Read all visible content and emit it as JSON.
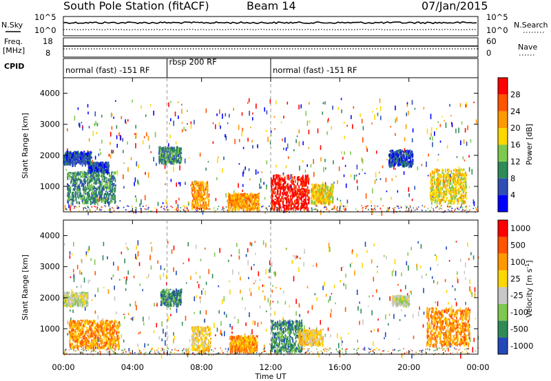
{
  "header": {
    "title_left": "South Pole Station (fitACF)",
    "title_mid": "Beam 14",
    "title_right": "07/Jan/2015"
  },
  "noise_panel": {
    "left_label": "N.Sky",
    "right_label": "N.Search",
    "left_ticks": [
      "10^5",
      "10^0"
    ],
    "right_ticks": [
      "10^5",
      "10^0"
    ]
  },
  "freq_panel": {
    "left_label_1": "Freq.",
    "left_label_2": "[MHz]",
    "left_ticks": [
      "18",
      "8"
    ],
    "right_label": "Nave",
    "right_ticks": [
      "60",
      "0"
    ]
  },
  "cpid": {
    "label": "CPID",
    "segments": [
      {
        "text": "normal (fast) -151 RF",
        "start_h": 0,
        "end_h": 6
      },
      {
        "text": "rbsp 200 RF",
        "start_h": 6,
        "end_h": 12
      },
      {
        "text": "normal (fast) -151 RF",
        "start_h": 12,
        "end_h": 24
      }
    ]
  },
  "x_axis": {
    "label": "Time UT",
    "ticks": [
      "00:00",
      "04:00",
      "08:00",
      "12:00",
      "16:00",
      "20:00",
      "00:00"
    ]
  },
  "chart_data": [
    {
      "type": "heatmap",
      "ylabel": "Slant Range [km]",
      "yticks": [
        1000,
        2000,
        3000,
        4000
      ],
      "ylim": [
        180,
        4500
      ],
      "xlim_hours": [
        0,
        24
      ],
      "colorbar_label": "Power [dB]",
      "colorbar_ticks": [
        "4",
        "8",
        "12",
        "16",
        "20",
        "24",
        "28"
      ],
      "colors": [
        "#0000ff",
        "#2e4fb4",
        "#2e8b57",
        "#7ec850",
        "#ffd700",
        "#ff9900",
        "#ff5500",
        "#ff0000"
      ],
      "regions": [
        {
          "t0": 0.0,
          "t1": 1.6,
          "r0": 1750,
          "r1": 2150,
          "level": 1
        },
        {
          "t0": 0.2,
          "t1": 3.0,
          "r0": 500,
          "r1": 1500,
          "level": 2
        },
        {
          "t0": 1.4,
          "t1": 2.6,
          "r0": 1500,
          "r1": 1800,
          "level": 1
        },
        {
          "t0": 5.5,
          "t1": 6.8,
          "r0": 1800,
          "r1": 2300,
          "level": 2
        },
        {
          "t0": 7.4,
          "t1": 8.4,
          "r0": 300,
          "r1": 1200,
          "level": 5
        },
        {
          "t0": 9.5,
          "t1": 11.3,
          "r0": 300,
          "r1": 800,
          "level": 5
        },
        {
          "t0": 12.0,
          "t1": 14.2,
          "r0": 300,
          "r1": 1400,
          "level": 7
        },
        {
          "t0": 14.3,
          "t1": 15.6,
          "r0": 500,
          "r1": 1100,
          "level": 4
        },
        {
          "t0": 18.8,
          "t1": 20.2,
          "r0": 1700,
          "r1": 2200,
          "level": 1
        },
        {
          "t0": 21.2,
          "t1": 23.3,
          "r0": 500,
          "r1": 1600,
          "level": 4
        }
      ]
    },
    {
      "type": "heatmap",
      "ylabel": "Slant Range [km]",
      "yticks": [
        1000,
        2000,
        3000,
        4000
      ],
      "ylim": [
        180,
        4500
      ],
      "xlim_hours": [
        0,
        24
      ],
      "colorbar_label": "Velocity [m s^-1]",
      "colorbar_ticks": [
        "1000",
        "500",
        "100",
        "25",
        "-25",
        "-100",
        "-500",
        "-1000"
      ],
      "colors": [
        "#2448b8",
        "#2e8b57",
        "#7ec850",
        "#c8c8c8",
        "#ffd700",
        "#ff9900",
        "#ff5500",
        "#ff0000"
      ],
      "regions": [
        {
          "t0": 0.0,
          "t1": 1.4,
          "r0": 1800,
          "r1": 2200,
          "level": 3
        },
        {
          "t0": 0.3,
          "t1": 3.2,
          "r0": 400,
          "r1": 1300,
          "level": 5
        },
        {
          "t0": 5.6,
          "t1": 6.8,
          "r0": 1800,
          "r1": 2300,
          "level": 1
        },
        {
          "t0": 7.4,
          "t1": 8.5,
          "r0": 300,
          "r1": 1100,
          "level": 4
        },
        {
          "t0": 9.6,
          "t1": 11.2,
          "r0": 300,
          "r1": 800,
          "level": 5
        },
        {
          "t0": 12.0,
          "t1": 13.8,
          "r0": 300,
          "r1": 1300,
          "level": 1
        },
        {
          "t0": 13.6,
          "t1": 15.0,
          "r0": 500,
          "r1": 1000,
          "level": 4
        },
        {
          "t0": 19.0,
          "t1": 20.0,
          "r0": 1800,
          "r1": 2100,
          "level": 3
        },
        {
          "t0": 21.0,
          "t1": 23.5,
          "r0": 500,
          "r1": 1700,
          "level": 5
        }
      ]
    }
  ]
}
